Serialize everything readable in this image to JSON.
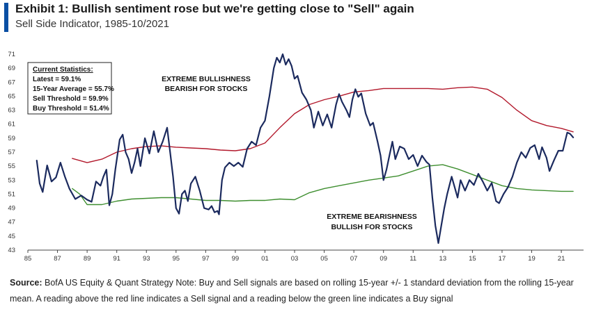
{
  "header": {
    "title": "Exhibit 1: Bullish sentiment rose but we're getting close to \"Sell\" again",
    "subtitle": "Sell Side Indicator, 1985-10/2021",
    "accent_color": "#0a4fa3"
  },
  "stats_box": {
    "heading": "Current Statistics:",
    "lines": [
      "Latest = 59.1%",
      "15-Year Average = 55.7%",
      "Sell Threshold = 59.9%",
      "Buy Threshold = 51.4%"
    ]
  },
  "annotations": {
    "top_line1": "EXTREME BULLISHNESS",
    "top_line2": "BEARISH FOR STOCKS",
    "bottom_line1": "EXTREME BEARISHNESS",
    "bottom_line2": "BULLISH FOR STOCKS"
  },
  "footer": {
    "source_label": "Source:",
    "source_text": " BofA US Equity & Quant Strategy Note: Buy and Sell signals are based on rolling 15-year +/- 1 standard deviation from the rolling 15-year mean. A reading above the red line indicates a Sell signal and a reading below the green line indicates a Buy signal"
  },
  "chart_data": {
    "type": "line",
    "xlim": [
      1985,
      2022.5
    ],
    "ylim": [
      43,
      71
    ],
    "x_ticks": [
      1985,
      1987,
      1989,
      1991,
      1993,
      1995,
      1997,
      1999,
      2001,
      2003,
      2005,
      2007,
      2009,
      2011,
      2013,
      2015,
      2017,
      2019,
      2021
    ],
    "x_tick_labels": [
      "85",
      "87",
      "89",
      "91",
      "93",
      "95",
      "97",
      "99",
      "01",
      "03",
      "05",
      "07",
      "09",
      "11",
      "13",
      "15",
      "17",
      "19",
      "21"
    ],
    "y_ticks": [
      43,
      45,
      47,
      49,
      51,
      53,
      55,
      57,
      59,
      61,
      63,
      65,
      67,
      69,
      71
    ],
    "y_tick_labels": [
      "43",
      "45",
      "47",
      "49",
      "51",
      "53",
      "55",
      "57",
      "59",
      "61",
      "63",
      "65",
      "67",
      "69",
      "71"
    ],
    "grid": false,
    "series": [
      {
        "role": "indicator",
        "color": "#1b2a5e",
        "points": [
          [
            1985.6,
            55.8
          ],
          [
            1985.8,
            52.5
          ],
          [
            1986.0,
            51.3
          ],
          [
            1986.3,
            55.1
          ],
          [
            1986.6,
            52.8
          ],
          [
            1986.9,
            53.4
          ],
          [
            1987.2,
            55.5
          ],
          [
            1987.5,
            53.5
          ],
          [
            1987.8,
            51.8
          ],
          [
            1988.2,
            50.3
          ],
          [
            1988.6,
            50.8
          ],
          [
            1989.0,
            50.2
          ],
          [
            1989.3,
            49.9
          ],
          [
            1989.6,
            52.8
          ],
          [
            1989.9,
            52.2
          ],
          [
            1990.1,
            53.5
          ],
          [
            1990.3,
            54.5
          ],
          [
            1990.5,
            49.4
          ],
          [
            1990.7,
            51.0
          ],
          [
            1990.9,
            54.5
          ],
          [
            1991.2,
            58.8
          ],
          [
            1991.4,
            59.5
          ],
          [
            1991.6,
            57.0
          ],
          [
            1991.8,
            56.0
          ],
          [
            1992.0,
            54.0
          ],
          [
            1992.2,
            55.5
          ],
          [
            1992.4,
            57.5
          ],
          [
            1992.6,
            55.0
          ],
          [
            1992.9,
            59.0
          ],
          [
            1993.2,
            56.8
          ],
          [
            1993.5,
            60.0
          ],
          [
            1993.8,
            57.0
          ],
          [
            1994.1,
            58.5
          ],
          [
            1994.4,
            60.5
          ],
          [
            1994.6,
            57.0
          ],
          [
            1994.8,
            53.5
          ],
          [
            1995.0,
            49.0
          ],
          [
            1995.2,
            48.2
          ],
          [
            1995.4,
            51.0
          ],
          [
            1995.6,
            51.5
          ],
          [
            1995.8,
            50.0
          ],
          [
            1996.0,
            52.5
          ],
          [
            1996.3,
            53.5
          ],
          [
            1996.6,
            51.5
          ],
          [
            1996.9,
            49.0
          ],
          [
            1997.2,
            48.8
          ],
          [
            1997.4,
            49.3
          ],
          [
            1997.6,
            48.4
          ],
          [
            1997.8,
            48.6
          ],
          [
            1997.9,
            48.1
          ],
          [
            1998.1,
            53.0
          ],
          [
            1998.3,
            54.8
          ],
          [
            1998.6,
            55.5
          ],
          [
            1998.9,
            55.0
          ],
          [
            1999.2,
            55.5
          ],
          [
            1999.5,
            54.9
          ],
          [
            1999.8,
            57.5
          ],
          [
            2000.1,
            58.5
          ],
          [
            2000.4,
            58.0
          ],
          [
            2000.7,
            60.5
          ],
          [
            2001.0,
            61.5
          ],
          [
            2001.3,
            65.0
          ],
          [
            2001.6,
            69.0
          ],
          [
            2001.8,
            70.5
          ],
          [
            2002.0,
            69.8
          ],
          [
            2002.2,
            71.0
          ],
          [
            2002.4,
            69.5
          ],
          [
            2002.6,
            70.3
          ],
          [
            2002.8,
            69.3
          ],
          [
            2003.0,
            67.5
          ],
          [
            2003.2,
            67.9
          ],
          [
            2003.5,
            65.5
          ],
          [
            2003.8,
            64.5
          ],
          [
            2004.1,
            63.0
          ],
          [
            2004.3,
            60.5
          ],
          [
            2004.6,
            62.8
          ],
          [
            2004.9,
            60.8
          ],
          [
            2005.2,
            62.4
          ],
          [
            2005.5,
            60.5
          ],
          [
            2005.8,
            63.8
          ],
          [
            2006.0,
            65.3
          ],
          [
            2006.2,
            64.2
          ],
          [
            2006.5,
            63.0
          ],
          [
            2006.7,
            62.0
          ],
          [
            2006.9,
            64.5
          ],
          [
            2007.1,
            66.0
          ],
          [
            2007.3,
            64.9
          ],
          [
            2007.5,
            65.4
          ],
          [
            2007.8,
            62.5
          ],
          [
            2008.1,
            60.8
          ],
          [
            2008.3,
            61.2
          ],
          [
            2008.6,
            58.5
          ],
          [
            2008.8,
            56.5
          ],
          [
            2009.0,
            53.0
          ],
          [
            2009.2,
            54.5
          ],
          [
            2009.4,
            56.5
          ],
          [
            2009.6,
            58.5
          ],
          [
            2009.8,
            56.0
          ],
          [
            2010.1,
            57.8
          ],
          [
            2010.4,
            57.5
          ],
          [
            2010.7,
            56.0
          ],
          [
            2011.0,
            56.6
          ],
          [
            2011.3,
            55.0
          ],
          [
            2011.6,
            56.5
          ],
          [
            2011.9,
            55.6
          ],
          [
            2012.1,
            55.2
          ],
          [
            2012.3,
            50.5
          ],
          [
            2012.5,
            46.5
          ],
          [
            2012.7,
            44.0
          ],
          [
            2012.9,
            46.5
          ],
          [
            2013.1,
            49.0
          ],
          [
            2013.3,
            51.0
          ],
          [
            2013.6,
            53.5
          ],
          [
            2013.8,
            52.0
          ],
          [
            2014.0,
            50.5
          ],
          [
            2014.2,
            53.0
          ],
          [
            2014.5,
            51.5
          ],
          [
            2014.8,
            53.0
          ],
          [
            2015.1,
            52.3
          ],
          [
            2015.4,
            53.9
          ],
          [
            2015.7,
            52.8
          ],
          [
            2016.0,
            51.5
          ],
          [
            2016.3,
            52.6
          ],
          [
            2016.6,
            50.0
          ],
          [
            2016.8,
            49.7
          ],
          [
            2017.1,
            51.0
          ],
          [
            2017.4,
            52.0
          ],
          [
            2017.7,
            53.5
          ],
          [
            2018.0,
            55.5
          ],
          [
            2018.3,
            57.0
          ],
          [
            2018.6,
            56.2
          ],
          [
            2018.9,
            57.6
          ],
          [
            2019.2,
            58.0
          ],
          [
            2019.5,
            56.0
          ],
          [
            2019.7,
            57.7
          ],
          [
            2020.0,
            56.2
          ],
          [
            2020.2,
            54.3
          ],
          [
            2020.5,
            55.8
          ],
          [
            2020.8,
            57.2
          ],
          [
            2021.1,
            57.2
          ],
          [
            2021.4,
            59.8
          ],
          [
            2021.6,
            59.6
          ],
          [
            2021.8,
            59.1
          ]
        ]
      },
      {
        "role": "sell-threshold",
        "color": "#b2182b",
        "points": [
          [
            1988.0,
            56.1
          ],
          [
            1989.0,
            55.5
          ],
          [
            1990.0,
            56.0
          ],
          [
            1991.0,
            57.0
          ],
          [
            1992.0,
            57.5
          ],
          [
            1993.0,
            57.8
          ],
          [
            1994.0,
            57.9
          ],
          [
            1995.0,
            57.7
          ],
          [
            1996.0,
            57.6
          ],
          [
            1997.0,
            57.5
          ],
          [
            1998.0,
            57.3
          ],
          [
            1999.0,
            57.2
          ],
          [
            2000.0,
            57.5
          ],
          [
            2001.0,
            58.3
          ],
          [
            2002.0,
            60.5
          ],
          [
            2003.0,
            62.5
          ],
          [
            2004.0,
            63.8
          ],
          [
            2005.0,
            64.5
          ],
          [
            2006.0,
            65.0
          ],
          [
            2007.0,
            65.6
          ],
          [
            2008.0,
            65.8
          ],
          [
            2009.0,
            66.1
          ],
          [
            2010.0,
            66.1
          ],
          [
            2011.0,
            66.1
          ],
          [
            2012.0,
            66.1
          ],
          [
            2013.0,
            66.0
          ],
          [
            2014.0,
            66.2
          ],
          [
            2015.0,
            66.3
          ],
          [
            2016.0,
            66.0
          ],
          [
            2017.0,
            64.8
          ],
          [
            2018.0,
            63.0
          ],
          [
            2019.0,
            61.5
          ],
          [
            2020.0,
            60.8
          ],
          [
            2021.0,
            60.4
          ],
          [
            2021.8,
            59.9
          ]
        ]
      },
      {
        "role": "buy-threshold",
        "color": "#3e8e2f",
        "points": [
          [
            1988.0,
            51.8
          ],
          [
            1988.5,
            51.0
          ],
          [
            1989.0,
            49.5
          ],
          [
            1990.0,
            49.5
          ],
          [
            1991.0,
            50.0
          ],
          [
            1992.0,
            50.3
          ],
          [
            1993.0,
            50.4
          ],
          [
            1994.0,
            50.5
          ],
          [
            1995.0,
            50.5
          ],
          [
            1996.0,
            50.3
          ],
          [
            1997.0,
            50.1
          ],
          [
            1998.0,
            50.1
          ],
          [
            1999.0,
            50.0
          ],
          [
            2000.0,
            50.1
          ],
          [
            2001.0,
            50.1
          ],
          [
            2002.0,
            50.3
          ],
          [
            2003.0,
            50.2
          ],
          [
            2004.0,
            51.2
          ],
          [
            2005.0,
            51.8
          ],
          [
            2006.0,
            52.2
          ],
          [
            2007.0,
            52.6
          ],
          [
            2008.0,
            53.0
          ],
          [
            2009.0,
            53.3
          ],
          [
            2010.0,
            53.6
          ],
          [
            2011.0,
            54.3
          ],
          [
            2012.0,
            55.0
          ],
          [
            2013.0,
            55.2
          ],
          [
            2014.0,
            54.6
          ],
          [
            2015.0,
            53.8
          ],
          [
            2016.0,
            53.0
          ],
          [
            2017.0,
            52.2
          ],
          [
            2018.0,
            51.8
          ],
          [
            2019.0,
            51.6
          ],
          [
            2020.0,
            51.5
          ],
          [
            2021.0,
            51.4
          ],
          [
            2021.8,
            51.4
          ]
        ]
      }
    ]
  }
}
